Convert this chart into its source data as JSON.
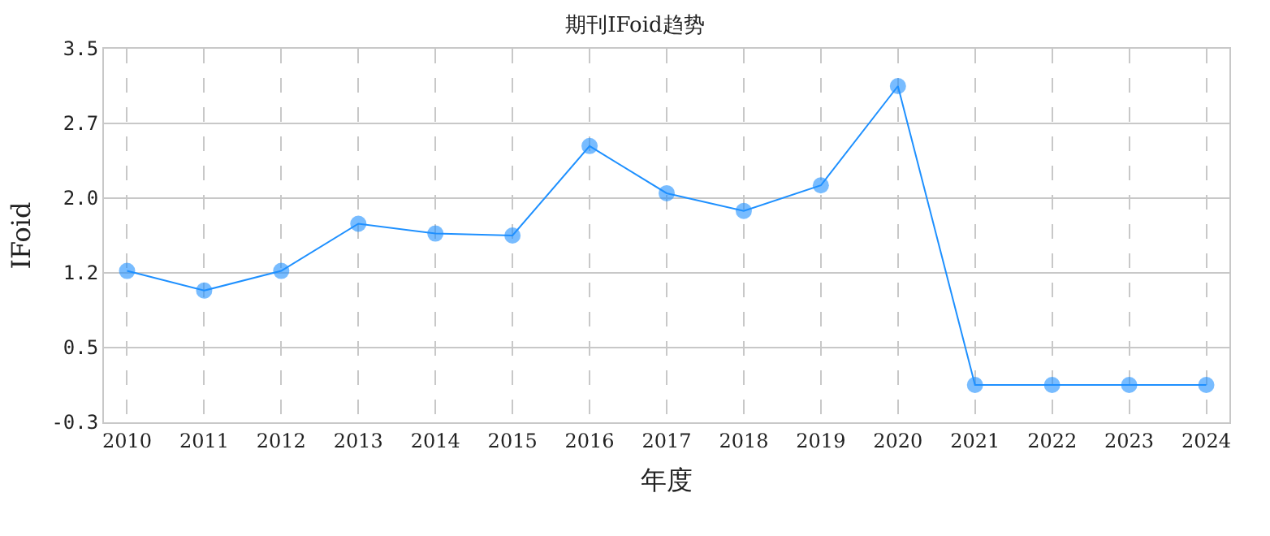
{
  "chart_data": {
    "type": "line",
    "title": "期刊IFoid趋势",
    "xlabel": "年度",
    "ylabel": "IFoid",
    "categories": [
      "2010",
      "2011",
      "2012",
      "2013",
      "2014",
      "2015",
      "2016",
      "2017",
      "2018",
      "2019",
      "2020",
      "2021",
      "2022",
      "2023",
      "2024"
    ],
    "series": [
      {
        "color": "#1e90ff",
        "values": [
          1.24,
          1.04,
          1.24,
          1.72,
          1.62,
          1.6,
          2.51,
          2.03,
          1.85,
          2.11,
          3.12,
          0.08,
          0.08,
          0.08,
          0.08
        ]
      }
    ],
    "ylim": [
      -0.3,
      3.5
    ],
    "yticks": [
      -0.3,
      {
        "value": 0.46,
        "label": "0.5"
      },
      {
        "value": 1.22,
        "label": "1.2"
      },
      {
        "value": 1.98,
        "label": "2.0"
      },
      {
        "value": 2.74,
        "label": "2.7"
      },
      3.5
    ],
    "grid": true,
    "marker": "circle",
    "line_style": "solid"
  }
}
